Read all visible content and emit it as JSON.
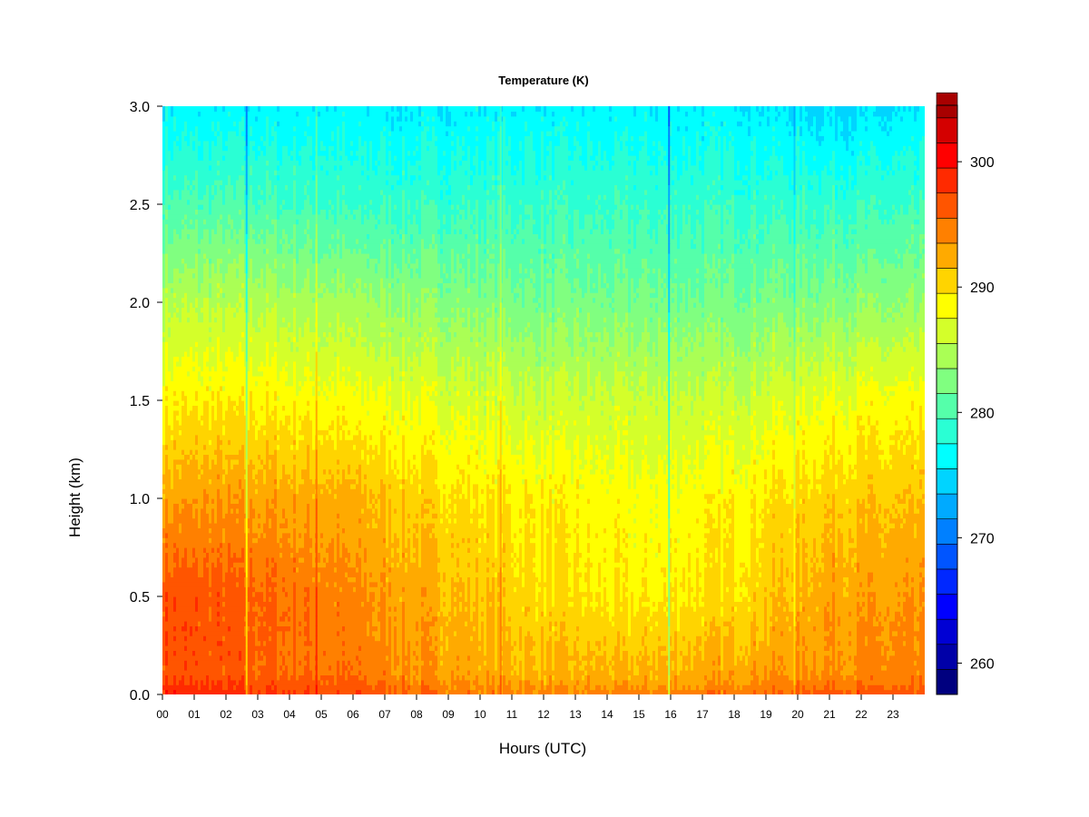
{
  "chart_data": {
    "type": "heatmap",
    "title": "Temperature (K)",
    "xlabel": "Hours (UTC)",
    "ylabel": "Height (km)",
    "x_ticks": [
      "00",
      "01",
      "02",
      "03",
      "04",
      "05",
      "06",
      "07",
      "08",
      "09",
      "10",
      "11",
      "12",
      "13",
      "14",
      "15",
      "16",
      "17",
      "18",
      "19",
      "20",
      "21",
      "22",
      "23"
    ],
    "xlim": [
      0,
      24
    ],
    "y_ticks": [
      "0.0",
      "0.5",
      "1.0",
      "1.5",
      "2.0",
      "2.5",
      "3.0"
    ],
    "ylim": [
      0,
      3.0
    ],
    "colorbar": {
      "ticks": [
        "260",
        "270",
        "280",
        "290",
        "300"
      ],
      "range": [
        257.5,
        304.5
      ],
      "step": 2,
      "colors": [
        "#00007f",
        "#0000a8",
        "#0000d4",
        "#0000ff",
        "#0028ff",
        "#0055ff",
        "#0080ff",
        "#00aaff",
        "#00d4ff",
        "#00ffff",
        "#2affd4",
        "#55ffaa",
        "#80ff80",
        "#aaff55",
        "#d4ff2a",
        "#ffff00",
        "#ffd400",
        "#ffaa00",
        "#ff8000",
        "#ff5500",
        "#ff2a00",
        "#ff0000",
        "#d40000",
        "#a80000"
      ]
    },
    "series": [
      {
        "x": 0,
        "height": [
          0.0,
          0.1,
          0.5,
          1.0,
          1.5,
          2.0,
          2.5,
          3.0
        ],
        "temperature": [
          299,
          297,
          297,
          293,
          289,
          285,
          280,
          276
        ]
      },
      {
        "x": 3,
        "height": [
          0.0,
          0.1,
          0.5,
          1.0,
          1.5,
          2.0,
          2.5,
          3.0
        ],
        "temperature": [
          298,
          296,
          296,
          293,
          289,
          285,
          280,
          276
        ]
      },
      {
        "x": 6,
        "height": [
          0.0,
          0.1,
          0.5,
          1.0,
          1.5,
          2.0,
          2.5,
          3.0
        ],
        "temperature": [
          297,
          295,
          294,
          292,
          288,
          284,
          279,
          276
        ]
      },
      {
        "x": 9,
        "height": [
          0.0,
          0.1,
          0.5,
          1.0,
          1.5,
          2.0,
          2.5,
          3.0
        ],
        "temperature": [
          295,
          293,
          292,
          290,
          287,
          283,
          279,
          276
        ]
      },
      {
        "x": 12,
        "height": [
          0.0,
          0.1,
          0.5,
          1.0,
          1.5,
          2.0,
          2.5,
          3.0
        ],
        "temperature": [
          294,
          292,
          290,
          289,
          286,
          282,
          279,
          276
        ]
      },
      {
        "x": 15,
        "height": [
          0.0,
          0.1,
          0.5,
          1.0,
          1.5,
          2.0,
          2.5,
          3.0
        ],
        "temperature": [
          294,
          292,
          289,
          288,
          286,
          282,
          279,
          276
        ]
      },
      {
        "x": 18,
        "height": [
          0.0,
          0.1,
          0.5,
          1.0,
          1.5,
          2.0,
          2.5,
          3.0
        ],
        "temperature": [
          295,
          293,
          290,
          289,
          286,
          282,
          279,
          276
        ]
      },
      {
        "x": 21,
        "height": [
          0.0,
          0.1,
          0.5,
          1.0,
          1.5,
          2.0,
          2.5,
          3.0
        ],
        "temperature": [
          297,
          294,
          293,
          291,
          288,
          283,
          279,
          275
        ]
      },
      {
        "x": 24,
        "height": [
          0.0,
          0.1,
          0.5,
          1.0,
          1.5,
          2.0,
          2.5,
          3.0
        ],
        "temperature": [
          296,
          294,
          293,
          291,
          288,
          283,
          279,
          275
        ]
      }
    ]
  }
}
